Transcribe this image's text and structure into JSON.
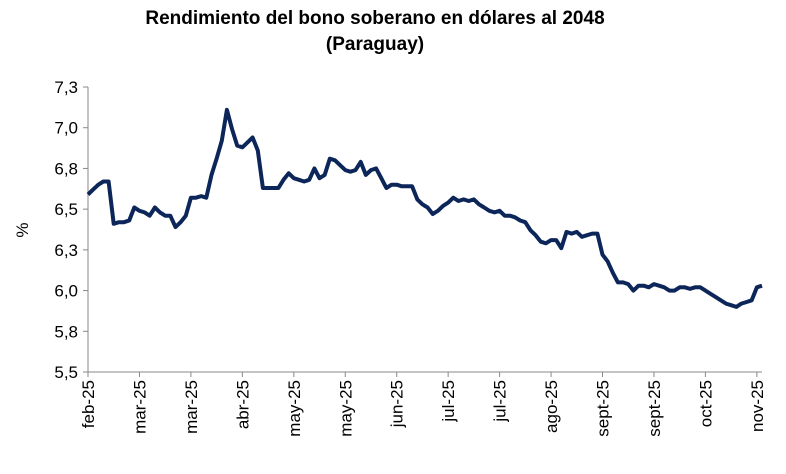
{
  "chart_data": {
    "type": "line",
    "title": "Rendimiento del bono soberano en dólares al 2048",
    "subtitle": "(Paraguay)",
    "y_label": "%",
    "categories": [
      "feb-25",
      null,
      null,
      null,
      null,
      null,
      null,
      null,
      null,
      null,
      "mar-25",
      null,
      null,
      null,
      null,
      null,
      null,
      null,
      null,
      null,
      "mar-25",
      null,
      null,
      null,
      null,
      null,
      null,
      null,
      null,
      null,
      "abr-25",
      null,
      null,
      null,
      null,
      null,
      null,
      null,
      null,
      null,
      "may-25",
      null,
      null,
      null,
      null,
      null,
      null,
      null,
      null,
      null,
      "may-25",
      null,
      null,
      null,
      null,
      null,
      null,
      null,
      null,
      null,
      "jun-25",
      null,
      null,
      null,
      null,
      null,
      null,
      null,
      null,
      null,
      "jul-25",
      null,
      null,
      null,
      null,
      null,
      null,
      null,
      null,
      null,
      "jul-25",
      null,
      null,
      null,
      null,
      null,
      null,
      null,
      null,
      null,
      "ago-25",
      null,
      null,
      null,
      null,
      null,
      null,
      null,
      null,
      null,
      "sept-25",
      null,
      null,
      null,
      null,
      null,
      null,
      null,
      null,
      null,
      "sept-25",
      null,
      null,
      null,
      null,
      null,
      null,
      null,
      null,
      null,
      "oct-25",
      null,
      null,
      null,
      null,
      null,
      null,
      null,
      null,
      null,
      "nov-25",
      null
    ],
    "series": [
      {
        "name": "Rendimiento",
        "color": "#0c2659",
        "values": [
          6.59,
          6.62,
          6.65,
          6.67,
          6.67,
          6.41,
          6.42,
          6.42,
          6.43,
          6.51,
          6.49,
          6.48,
          6.46,
          6.51,
          6.48,
          6.46,
          6.46,
          6.39,
          6.42,
          6.46,
          6.57,
          6.57,
          6.58,
          6.57,
          6.71,
          6.81,
          6.92,
          7.11,
          6.99,
          6.89,
          6.88,
          6.91,
          6.94,
          6.86,
          6.63,
          6.63,
          6.63,
          6.63,
          6.68,
          6.72,
          6.69,
          6.68,
          6.67,
          6.68,
          6.75,
          6.69,
          6.71,
          6.81,
          6.8,
          6.77,
          6.74,
          6.73,
          6.74,
          6.79,
          6.71,
          6.74,
          6.75,
          6.69,
          6.63,
          6.65,
          6.65,
          6.64,
          6.64,
          6.64,
          6.56,
          6.53,
          6.51,
          6.47,
          6.49,
          6.52,
          6.54,
          6.57,
          6.55,
          6.56,
          6.55,
          6.56,
          6.53,
          6.51,
          6.49,
          6.48,
          6.49,
          6.46,
          6.46,
          6.45,
          6.43,
          6.42,
          6.37,
          6.34,
          6.3,
          6.29,
          6.31,
          6.31,
          6.26,
          6.36,
          6.35,
          6.36,
          6.33,
          6.34,
          6.35,
          6.35,
          6.22,
          6.18,
          6.11,
          6.05,
          6.05,
          6.04,
          6.0,
          6.03,
          6.03,
          6.02,
          6.04,
          6.03,
          6.02,
          6.0,
          6.0,
          6.02,
          6.02,
          6.01,
          6.02,
          6.02,
          6.0,
          5.98,
          5.96,
          5.94,
          5.92,
          5.91,
          5.9,
          5.92,
          5.93,
          5.94,
          6.02,
          6.03
        ]
      }
    ],
    "ylim": [
      5.5,
      7.25
    ],
    "yticks": [
      {
        "value": 5.5,
        "label": "5,5"
      },
      {
        "value": 5.75,
        "label": "5,8"
      },
      {
        "value": 6.0,
        "label": "6,0"
      },
      {
        "value": 6.25,
        "label": "6,3"
      },
      {
        "value": 6.5,
        "label": "6,5"
      },
      {
        "value": 6.75,
        "label": "6,8"
      },
      {
        "value": 7.0,
        "label": "7,0"
      },
      {
        "value": 7.25,
        "label": "7,3"
      }
    ],
    "grid": false
  }
}
